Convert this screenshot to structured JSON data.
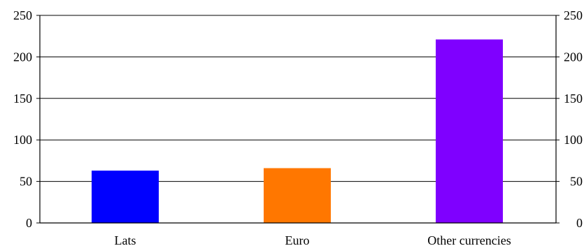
{
  "chart_data": {
    "type": "bar",
    "title": "",
    "xlabel": "",
    "ylabel": "",
    "categories": [
      "Lats",
      "Euro",
      "Other currencies"
    ],
    "values": [
      63,
      66,
      221
    ],
    "colors": [
      "#0000ff",
      "#ff7700",
      "#7f00ff"
    ],
    "ylim": [
      0,
      250
    ],
    "yticks": [
      "0",
      "50",
      "100",
      "150",
      "200",
      "250"
    ],
    "y_axis_right_mirrored": true,
    "grid": true,
    "legend": "none"
  }
}
